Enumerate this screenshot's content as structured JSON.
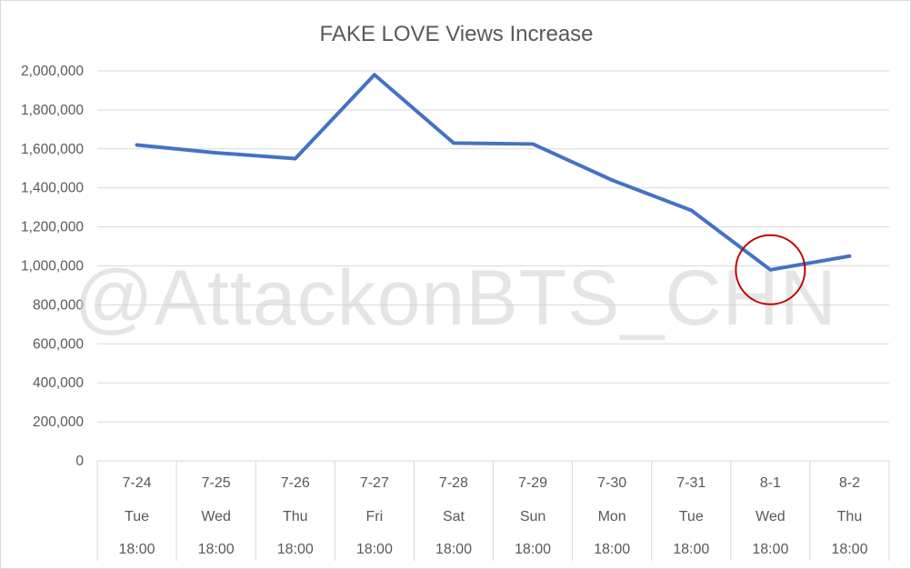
{
  "chart_data": {
    "type": "line",
    "title": "FAKE LOVE Views Increase",
    "x": [
      {
        "date": "7-24",
        "day": "Tue",
        "time": "18:00"
      },
      {
        "date": "7-25",
        "day": "Wed",
        "time": "18:00"
      },
      {
        "date": "7-26",
        "day": "Thu",
        "time": "18:00"
      },
      {
        "date": "7-27",
        "day": "Fri",
        "time": "18:00"
      },
      {
        "date": "7-28",
        "day": "Sat",
        "time": "18:00"
      },
      {
        "date": "7-29",
        "day": "Sun",
        "time": "18:00"
      },
      {
        "date": "7-30",
        "day": "Mon",
        "time": "18:00"
      },
      {
        "date": "7-31",
        "day": "Tue",
        "time": "18:00"
      },
      {
        "date": "8-1",
        "day": "Wed",
        "time": "18:00"
      },
      {
        "date": "8-2",
        "day": "Thu",
        "time": "18:00"
      }
    ],
    "series": [
      {
        "values": [
          1620000,
          1580000,
          1550000,
          1980000,
          1630000,
          1625000,
          1440000,
          1285000,
          980000,
          1050000
        ]
      }
    ],
    "ylim": [
      0,
      2000000
    ],
    "yticks": [
      "0",
      "200,000",
      "400,000",
      "600,000",
      "800,000",
      "1,000,000",
      "1,200,000",
      "1,400,000",
      "1,600,000",
      "1,800,000",
      "2,000,000"
    ],
    "grid": true,
    "legend": "none",
    "highlight_index": 8,
    "colors": {
      "line": "#4472c4",
      "highlight": "#c00000",
      "text": "#595959",
      "grid": "#d9d9d9"
    }
  },
  "watermark": "@AttackonBTS_CHN"
}
